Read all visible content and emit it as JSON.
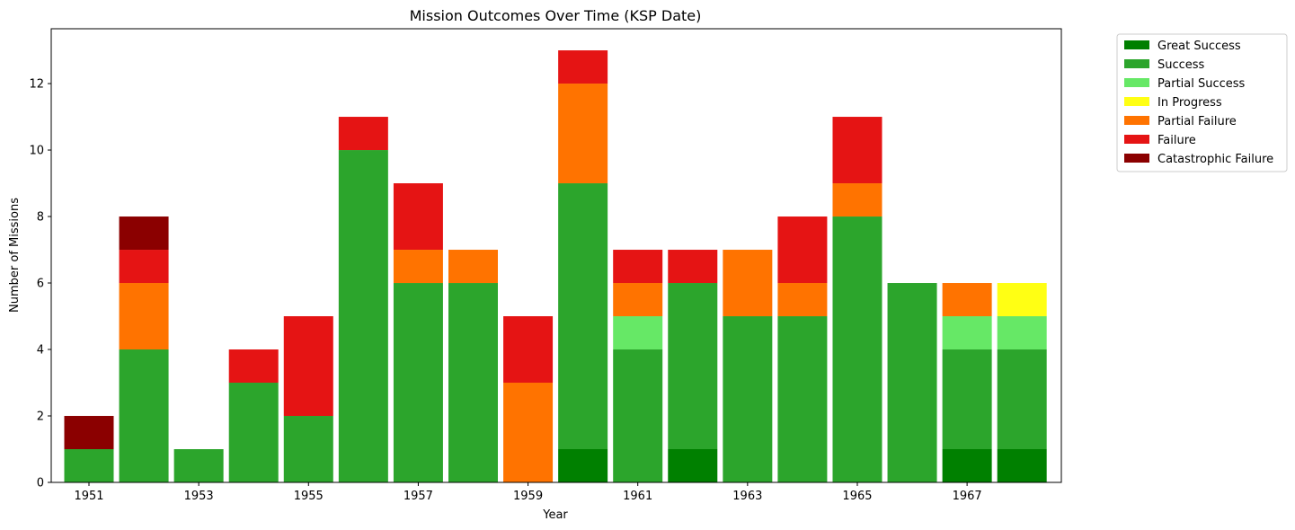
{
  "chart_data": {
    "type": "bar",
    "stacked": true,
    "title": "Mission Outcomes Over Time (KSP Date)",
    "xlabel": "Year",
    "ylabel": "Number of Missions",
    "categories": [
      1951,
      1952,
      1953,
      1954,
      1955,
      1956,
      1957,
      1958,
      1959,
      1960,
      1961,
      1962,
      1963,
      1964,
      1965,
      1966,
      1967,
      1968
    ],
    "x_tick_labels": [
      "1951",
      "1953",
      "1955",
      "1957",
      "1959",
      "1961",
      "1963",
      "1965",
      "1967"
    ],
    "y_ticks": [
      0,
      2,
      4,
      6,
      8,
      10,
      12
    ],
    "ylim": [
      0,
      13.65
    ],
    "grid": false,
    "legend_position": "outside-top-right",
    "series": [
      {
        "name": "Great Success",
        "color": "#008000",
        "values": [
          0,
          0,
          0,
          0,
          0,
          0,
          0,
          0,
          0,
          1,
          0,
          1,
          0,
          0,
          0,
          0,
          1,
          1
        ]
      },
      {
        "name": "Success",
        "color": "#2ca52c",
        "values": [
          1,
          4,
          1,
          3,
          2,
          10,
          6,
          6,
          0,
          8,
          4,
          5,
          5,
          5,
          8,
          6,
          3,
          3
        ]
      },
      {
        "name": "Partial Success",
        "color": "#66e866",
        "values": [
          0,
          0,
          0,
          0,
          0,
          0,
          0,
          0,
          0,
          0,
          1,
          0,
          0,
          0,
          0,
          0,
          1,
          1
        ]
      },
      {
        "name": "In Progress",
        "color": "#ffff14",
        "values": [
          0,
          0,
          0,
          0,
          0,
          0,
          0,
          0,
          0,
          0,
          0,
          0,
          0,
          0,
          0,
          0,
          0,
          1
        ]
      },
      {
        "name": "Partial Failure",
        "color": "#ff7300",
        "values": [
          0,
          2,
          0,
          0,
          0,
          0,
          1,
          1,
          3,
          3,
          1,
          0,
          2,
          1,
          1,
          0,
          1,
          0
        ]
      },
      {
        "name": "Failure",
        "color": "#e51414",
        "values": [
          0,
          1,
          0,
          1,
          3,
          1,
          2,
          0,
          2,
          1,
          1,
          1,
          0,
          2,
          2,
          0,
          0,
          0
        ]
      },
      {
        "name": "Catastrophic Failure",
        "color": "#8b0000",
        "values": [
          1,
          1,
          0,
          0,
          0,
          0,
          0,
          0,
          0,
          0,
          0,
          0,
          0,
          0,
          0,
          0,
          0,
          0
        ]
      }
    ]
  }
}
